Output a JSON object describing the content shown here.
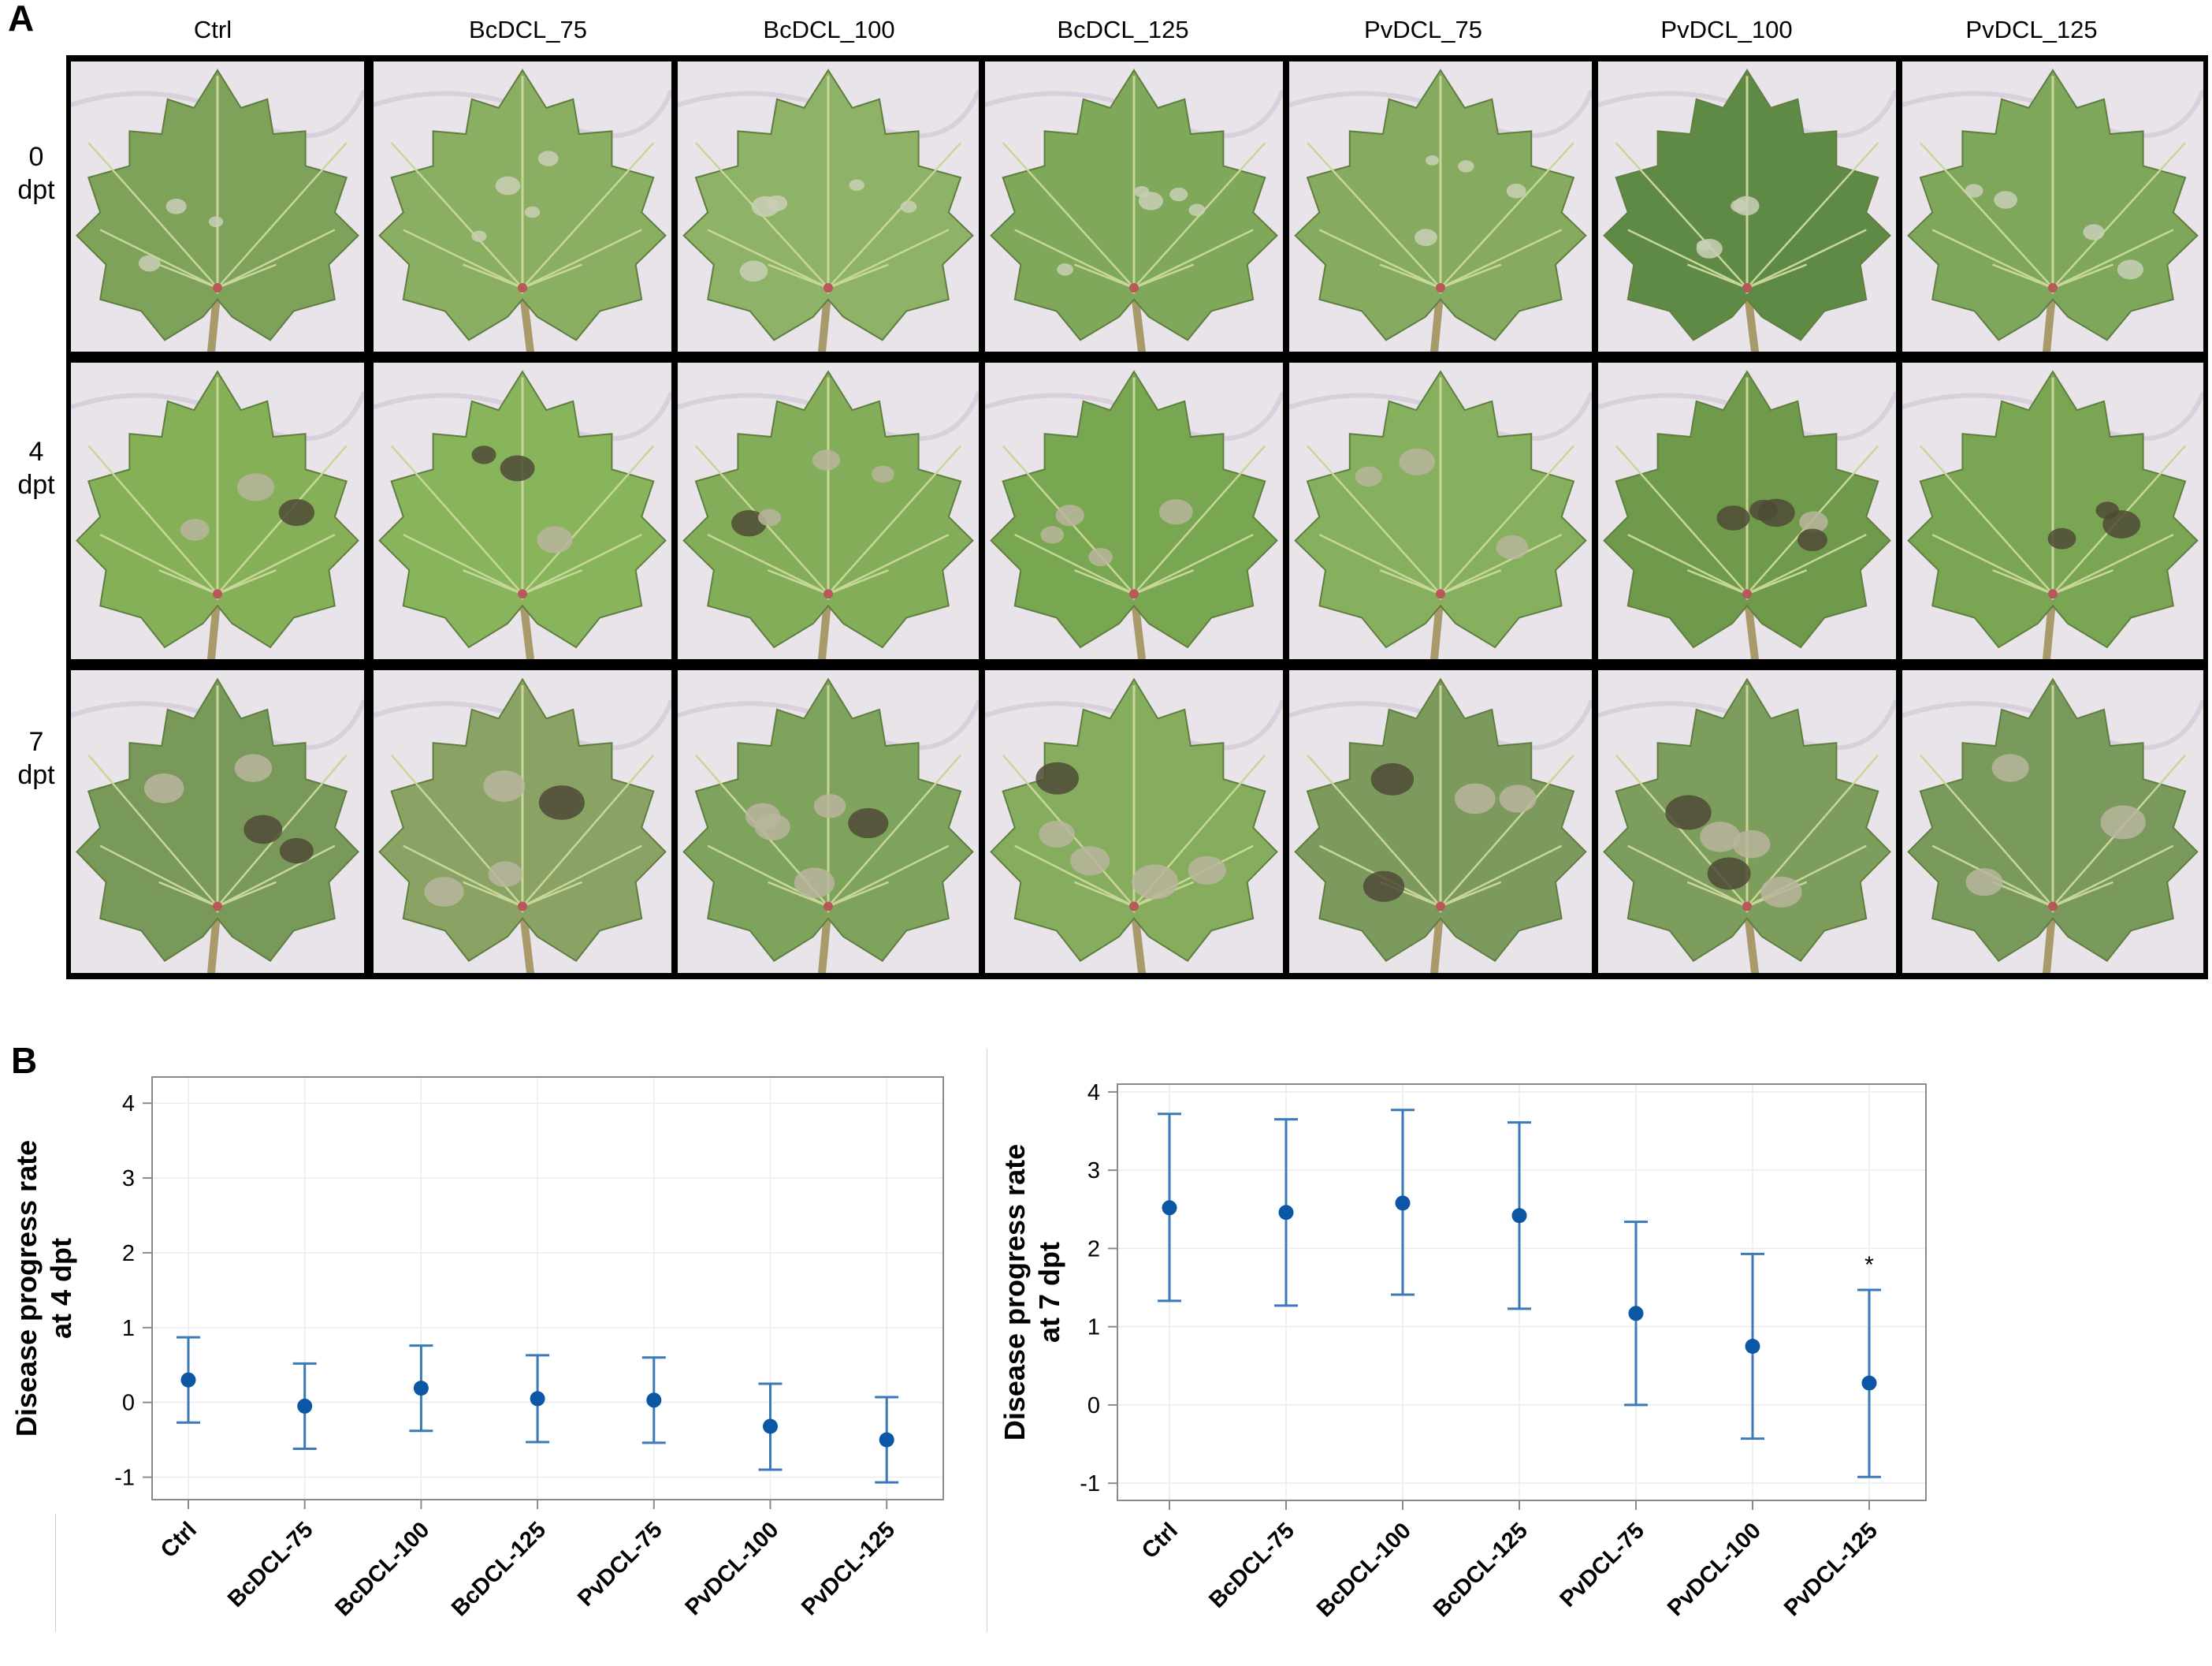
{
  "panel_a": {
    "letter": "A",
    "columns": [
      "Ctrl",
      "BcDCL_75",
      "BcDCL_100",
      "BcDCL_125",
      "PvDCL_75",
      "PvDCL_100",
      "PvDCL_125"
    ],
    "rows": [
      {
        "line1": "0",
        "line2": "dpt"
      },
      {
        "line1": "4",
        "line2": "dpt"
      },
      {
        "line1": "7",
        "line2": "dpt"
      }
    ]
  },
  "panel_b": {
    "letter": "B"
  },
  "colors": {
    "point": "#0b56a5",
    "errorbar": "#3b79b8",
    "axis": "#8a8a8a",
    "grid": "#ececec"
  },
  "chart_data": [
    {
      "type": "scatter",
      "ylabel": "Disease progress rate at 4 dpt",
      "ylabel_lines": [
        "Disease progress rate",
        "at 4 dpt"
      ],
      "categories": [
        "Ctrl",
        "BcDCL-75",
        "BcDCL-100",
        "BcDCL-125",
        "PvDCL-75",
        "PvDCL-100",
        "PvDCL-125"
      ],
      "values": [
        0.3,
        -0.05,
        0.19,
        0.05,
        0.03,
        -0.32,
        -0.5
      ],
      "lower": [
        -0.27,
        -0.62,
        -0.38,
        -0.53,
        -0.54,
        -0.9,
        -1.07
      ],
      "upper": [
        0.87,
        0.52,
        0.76,
        0.63,
        0.6,
        0.25,
        0.07
      ],
      "yticks": [
        "-1",
        "0",
        "1",
        "2",
        "3",
        "4"
      ],
      "ylim": [
        -1.3,
        4.35
      ],
      "grid": true,
      "annotations": []
    },
    {
      "type": "scatter",
      "ylabel": "Disease progress rate at 7 dpt",
      "ylabel_lines": [
        "Disease progress rate",
        "at 7 dpt"
      ],
      "categories": [
        "Ctrl",
        "BcDCL-75",
        "BcDCL-100",
        "BcDCL-125",
        "PvDCL-75",
        "PvDCL-100",
        "PvDCL-125"
      ],
      "values": [
        2.52,
        2.46,
        2.58,
        2.42,
        1.17,
        0.75,
        0.28
      ],
      "lower": [
        1.33,
        1.27,
        1.41,
        1.23,
        0.0,
        -0.43,
        -0.92
      ],
      "upper": [
        3.72,
        3.65,
        3.77,
        3.61,
        2.34,
        1.93,
        1.47
      ],
      "yticks": [
        "-1",
        "0",
        "1",
        "2",
        "3",
        "4"
      ],
      "ylim": [
        -1.22,
        4.1
      ],
      "grid": true,
      "annotations": [
        {
          "category": "PvDCL-125",
          "text": "*"
        }
      ]
    }
  ]
}
